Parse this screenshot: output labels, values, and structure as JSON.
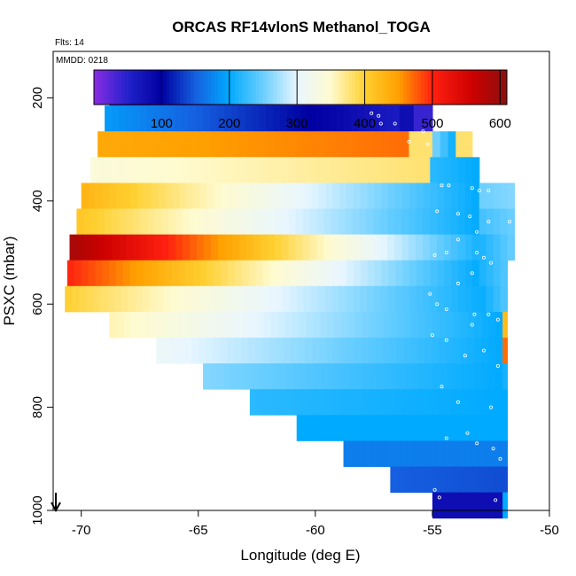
{
  "chart_data": {
    "type": "heatmap",
    "title": "ORCAS RF14vlonS Methanol_TOGA",
    "flights_label": "Flts: 14",
    "date_label": "MMDD: 0218",
    "xlabel": "Longitude (deg E)",
    "ylabel": "PSXC (mbar)",
    "xlim": [
      -71.2,
      -50
    ],
    "ylim": [
      1000,
      110
    ],
    "y_reversed": true,
    "x_ticks": [
      -70,
      -65,
      -60,
      -55,
      -50
    ],
    "x_tick_labels": [
      "-70",
      "-65",
      "-60",
      "-55",
      "-50"
    ],
    "y_ticks": [
      200,
      400,
      600,
      800,
      1000
    ],
    "y_tick_labels": [
      "200",
      "400",
      "600",
      "800",
      "1000"
    ],
    "colorbar": {
      "range": [
        0,
        610
      ],
      "ticks": [
        100,
        200,
        300,
        400,
        500,
        600
      ],
      "tick_labels": [
        "100",
        "200",
        "300",
        "400",
        "500",
        "600"
      ],
      "colors": [
        [
          0,
          "#8a2be2"
        ],
        [
          50,
          "#2222cc"
        ],
        [
          100,
          "#0000a0"
        ],
        [
          150,
          "#1560e0"
        ],
        [
          200,
          "#00aaff"
        ],
        [
          250,
          "#6ccfff"
        ],
        [
          300,
          "#e8f6ff"
        ],
        [
          350,
          "#fffbd0"
        ],
        [
          400,
          "#ffd030"
        ],
        [
          450,
          "#ffa000"
        ],
        [
          500,
          "#ff2010"
        ],
        [
          560,
          "#cc0000"
        ],
        [
          610,
          "#8b1010"
        ]
      ]
    },
    "rows": [
      {
        "p": 190,
        "segments": [
          [
            -68.8,
            -57.2,
            30,
            30
          ],
          [
            -57.2,
            -55.0,
            0,
            0
          ]
        ]
      },
      {
        "p": 240,
        "segments": [
          [
            -69.0,
            -56.4,
            190,
            60
          ],
          [
            -56.4,
            -55.8,
            80,
            80
          ],
          [
            -55.8,
            -55.0,
            40,
            40
          ]
        ]
      },
      {
        "p": 290,
        "segments": [
          [
            -69.3,
            -56.0,
            440,
            470
          ],
          [
            -56.0,
            -55.0,
            380,
            380
          ],
          [
            -55.0,
            -54.0,
            260,
            200
          ],
          [
            -54.0,
            -53.3,
            380,
            380
          ]
        ]
      },
      {
        "p": 340,
        "segments": [
          [
            -69.6,
            -55.1,
            340,
            380
          ],
          [
            -55.1,
            -53.0,
            220,
            200
          ]
        ]
      },
      {
        "p": 390,
        "segments": [
          [
            -70.0,
            -53.0,
            430,
            200
          ],
          [
            -53.0,
            -51.5,
            250,
            260
          ]
        ]
      },
      {
        "p": 440,
        "segments": [
          [
            -70.2,
            -53.0,
            410,
            200
          ],
          [
            -53.0,
            -51.5,
            230,
            250
          ]
        ]
      },
      {
        "p": 490,
        "segments": [
          [
            -70.5,
            -53.0,
            590,
            210
          ],
          [
            -53.0,
            -51.5,
            210,
            250
          ]
        ]
      },
      {
        "p": 540,
        "segments": [
          [
            -70.6,
            -53.0,
            500,
            200
          ],
          [
            -53.0,
            -51.8,
            210,
            240
          ]
        ]
      },
      {
        "p": 590,
        "segments": [
          [
            -70.7,
            -53.0,
            400,
            205
          ],
          [
            -53.0,
            -51.8,
            200,
            240
          ]
        ]
      },
      {
        "p": 640,
        "segments": [
          [
            -68.8,
            -52.0,
            360,
            200
          ],
          [
            -52.0,
            -51.8,
            420,
            420
          ]
        ]
      },
      {
        "p": 690,
        "segments": [
          [
            -66.8,
            -52.0,
            310,
            200
          ],
          [
            -52.0,
            -51.8,
            470,
            470
          ]
        ]
      },
      {
        "p": 740,
        "segments": [
          [
            -64.8,
            -52.0,
            260,
            200
          ],
          [
            -52.0,
            -51.8,
            210,
            210
          ]
        ]
      },
      {
        "p": 790,
        "segments": [
          [
            -62.8,
            -51.8,
            220,
            200
          ]
        ]
      },
      {
        "p": 840,
        "segments": [
          [
            -60.8,
            -51.8,
            200,
            200
          ]
        ]
      },
      {
        "p": 890,
        "segments": [
          [
            -58.8,
            -51.8,
            170,
            170
          ]
        ]
      },
      {
        "p": 940,
        "segments": [
          [
            -56.8,
            -51.8,
            150,
            140
          ]
        ]
      },
      {
        "p": 990,
        "segments": [
          [
            -55.0,
            -52.0,
            80,
            80
          ],
          [
            -52.0,
            -51.8,
            200,
            200
          ]
        ]
      }
    ],
    "markers": [
      [
        -68.2,
        190
      ],
      [
        -67.8,
        180
      ],
      [
        -66.5,
        175
      ],
      [
        -66.2,
        175
      ],
      [
        -62.2,
        180
      ],
      [
        -61.0,
        180
      ],
      [
        -59.8,
        180
      ],
      [
        -58.9,
        180
      ],
      [
        -57.6,
        230
      ],
      [
        -57.3,
        235
      ],
      [
        -57.2,
        250
      ],
      [
        -56.6,
        250
      ],
      [
        -56.0,
        285
      ],
      [
        -55.4,
        265
      ],
      [
        -55.2,
        290
      ],
      [
        -54.6,
        370
      ],
      [
        -54.3,
        370
      ],
      [
        -53.3,
        375
      ],
      [
        -53.0,
        380
      ],
      [
        -52.6,
        380
      ],
      [
        -54.8,
        420
      ],
      [
        -53.9,
        425
      ],
      [
        -53.4,
        430
      ],
      [
        -52.6,
        440
      ],
      [
        -51.7,
        440
      ],
      [
        -53.1,
        460
      ],
      [
        -53.9,
        475
      ],
      [
        -54.4,
        500
      ],
      [
        -54.9,
        505
      ],
      [
        -53.1,
        500
      ],
      [
        -52.8,
        510
      ],
      [
        -52.5,
        520
      ],
      [
        -53.3,
        540
      ],
      [
        -53.9,
        560
      ],
      [
        -55.1,
        580
      ],
      [
        -54.8,
        600
      ],
      [
        -54.4,
        610
      ],
      [
        -53.2,
        620
      ],
      [
        -52.6,
        620
      ],
      [
        -52.2,
        630
      ],
      [
        -53.3,
        640
      ],
      [
        -55.0,
        660
      ],
      [
        -54.4,
        670
      ],
      [
        -52.8,
        690
      ],
      [
        -53.6,
        700
      ],
      [
        -52.2,
        720
      ],
      [
        -54.6,
        760
      ],
      [
        -53.9,
        790
      ],
      [
        -52.5,
        800
      ],
      [
        -54.4,
        860
      ],
      [
        -53.5,
        850
      ],
      [
        -53.1,
        870
      ],
      [
        -52.4,
        880
      ],
      [
        -52.1,
        900
      ],
      [
        -54.9,
        960
      ],
      [
        -54.7,
        975
      ],
      [
        -52.3,
        980
      ]
    ]
  }
}
